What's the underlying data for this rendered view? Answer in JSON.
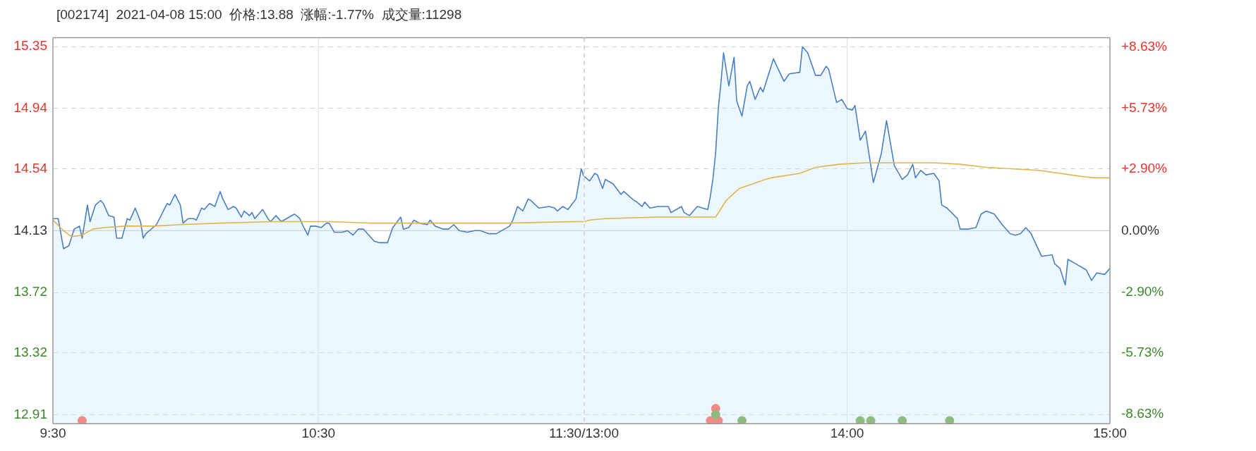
{
  "chart_data": [
    {
      "type": "line",
      "title": "[002174]  2021-04-08 15:00  价格:13.88  涨幅:-1.77%  成交量:11298",
      "xlim": [
        9.5,
        11.5
      ],
      "xticks": [
        {
          "value": 9.5,
          "label": "9:30"
        },
        {
          "value": 10.5,
          "label": "10:30"
        },
        {
          "value": 11.5,
          "label": "11:30/13:00"
        }
      ],
      "ylim": [
        12.85,
        15.41
      ],
      "yticks": [
        12.91,
        13.32,
        13.72,
        14.13,
        14.54,
        14.94,
        15.35
      ],
      "grid": "y",
      "legend": false,
      "ref_lines": [
        {
          "axis": "y",
          "value": 14.13,
          "color": "#c8cdd3",
          "line_style": "solid"
        },
        {
          "axis": "x",
          "value": 10.5,
          "color": "#dde3ea",
          "line_style": "solid"
        }
      ],
      "series": [
        {
          "type": "area",
          "color": "#4a7fc1",
          "x": [
            9.5,
            9.52,
            9.54,
            9.56,
            9.58,
            9.6,
            9.61,
            9.63,
            9.64,
            9.66,
            9.68,
            9.69,
            9.71,
            9.73,
            9.74,
            9.76,
            9.78,
            9.79,
            9.81,
            9.83,
            9.84,
            9.85,
            9.89,
            9.93,
            9.94,
            9.96,
            9.98,
            9.99,
            10.01,
            10.03,
            10.04,
            10.06,
            10.07,
            10.09,
            10.11,
            10.13,
            10.14,
            10.16,
            10.18,
            10.19,
            10.21,
            10.22,
            10.24,
            10.25,
            10.26,
            10.29,
            10.31,
            10.32,
            10.34,
            10.36,
            10.39,
            10.41,
            10.43,
            10.44,
            10.46,
            10.47,
            10.49,
            10.51,
            10.53,
            10.54,
            10.56,
            10.57,
            10.59,
            10.61,
            10.63,
            10.65,
            10.67,
            10.71,
            10.73,
            10.76,
            10.78,
            10.81,
            10.82,
            10.84,
            10.86,
            10.88,
            10.91,
            10.92,
            10.94,
            10.97,
            10.99,
            11.01,
            11.03,
            11.06,
            11.09,
            11.11,
            11.14,
            11.17,
            11.2,
            11.22,
            11.23,
            11.25,
            11.27,
            11.29,
            11.3,
            11.33,
            11.37,
            11.39,
            11.4,
            11.42,
            11.44,
            11.47,
            11.49,
            11.5
          ],
          "values": [
            14.21,
            14.21,
            14.01,
            14.03,
            14.14,
            14.16,
            14.08,
            14.3,
            14.19,
            14.3,
            14.33,
            14.31,
            14.23,
            14.22,
            14.08,
            14.08,
            14.21,
            14.2,
            14.28,
            14.19,
            14.08,
            14.11,
            14.17,
            14.31,
            14.3,
            14.37,
            14.3,
            14.18,
            14.21,
            14.21,
            14.2,
            14.28,
            14.27,
            14.31,
            14.29,
            14.39,
            14.34,
            14.27,
            14.29,
            14.28,
            14.22,
            14.26,
            14.23,
            14.25,
            14.21,
            14.27,
            14.21,
            14.19,
            14.23,
            14.19,
            14.22,
            14.24,
            14.21,
            14.17,
            14.1,
            14.16,
            14.16,
            14.15,
            14.18,
            14.18,
            14.12,
            14.12,
            14.12,
            14.13,
            14.1,
            14.14,
            14.14,
            14.06,
            14.05,
            14.05,
            14.15,
            14.22,
            14.14,
            14.15,
            14.2,
            14.18,
            14.17,
            14.2,
            14.16,
            14.14,
            14.14,
            14.17,
            14.13,
            14.12,
            14.13,
            14.13,
            14.11,
            14.11,
            14.14,
            14.16,
            14.19,
            14.29,
            14.26,
            14.34,
            14.33,
            14.28,
            14.29,
            14.28,
            14.26,
            14.29,
            14.27,
            14.34,
            14.54,
            14.49
          ]
        },
        {
          "color": "#dfb54e",
          "x": [
            9.5,
            9.54,
            9.57,
            9.61,
            9.65,
            9.69,
            9.77,
            9.88,
            9.98,
            10.13,
            10.33,
            10.54,
            10.7,
            10.76,
            11.21,
            11.47,
            11.5
          ],
          "values": [
            14.2,
            14.13,
            14.09,
            14.1,
            14.14,
            14.15,
            14.16,
            14.16,
            14.17,
            14.18,
            14.19,
            14.19,
            14.18,
            14.18,
            14.18,
            14.19,
            14.19
          ]
        },
        {
          "type": "scatter",
          "color": "#f08a84",
          "x": [
            9.61
          ],
          "values": [
            12.87
          ]
        }
      ]
    },
    {
      "type": "line",
      "xlim": [
        13,
        15
      ],
      "xticks": [
        {
          "value": 13,
          "label": null
        },
        {
          "value": 14,
          "label": "14:00"
        },
        {
          "value": 15,
          "label": "15:00"
        }
      ],
      "ylim": [
        12.85,
        15.41
      ],
      "yticks": [
        12.91,
        13.32,
        13.72,
        14.13,
        14.54,
        14.94,
        15.35
      ],
      "y2lim": [
        -9.06,
        9.06
      ],
      "y2ticks": [
        {
          "value": -8.63,
          "label": "-8.63%"
        },
        {
          "value": -5.73,
          "label": "-5.73%"
        },
        {
          "value": -2.9,
          "label": "-2.90%"
        },
        {
          "value": 0,
          "label": "0.00%"
        },
        {
          "value": 2.9,
          "label": "+2.90%"
        },
        {
          "value": 5.73,
          "label": "+5.73%"
        },
        {
          "value": 8.63,
          "label": "+8.63%"
        }
      ],
      "tick_labels": "x",
      "grid": "y",
      "legend": false,
      "ref_lines": [
        {
          "axis": "y",
          "value": 14.13,
          "color": "#c8cdd3",
          "line_style": "solid"
        },
        {
          "axis": "x",
          "value": 13,
          "color": "#bcbcbc",
          "line_style": "dashed"
        },
        {
          "axis": "x",
          "value": 14,
          "color": "#dde3ea",
          "line_style": "solid"
        }
      ],
      "series": [
        {
          "type": "area",
          "color": "#4a7fc1",
          "x": [
            13.0,
            13.02,
            13.04,
            13.05,
            13.07,
            13.08,
            13.11,
            13.14,
            13.15,
            13.17,
            13.19,
            13.2,
            13.22,
            13.23,
            13.25,
            13.28,
            13.3,
            13.32,
            13.33,
            13.37,
            13.38,
            13.4,
            13.43,
            13.45,
            13.47,
            13.48,
            13.49,
            13.5,
            13.51,
            13.52,
            13.53,
            13.55,
            13.57,
            13.58,
            13.6,
            13.62,
            13.63,
            13.65,
            13.67,
            13.68,
            13.72,
            13.73,
            13.76,
            13.78,
            13.82,
            13.83,
            13.85,
            13.88,
            13.9,
            13.92,
            13.93,
            13.96,
            13.98,
            14.0,
            14.02,
            14.03,
            14.05,
            14.07,
            14.1,
            14.13,
            14.15,
            14.18,
            14.21,
            14.23,
            14.25,
            14.26,
            14.28,
            14.3,
            14.33,
            14.35,
            14.36,
            14.38,
            14.42,
            14.43,
            14.46,
            14.49,
            14.51,
            14.53,
            14.56,
            14.59,
            14.62,
            14.64,
            14.66,
            14.68,
            14.7,
            14.74,
            14.78,
            14.79,
            14.81,
            14.83,
            14.84,
            14.87,
            14.91,
            14.93,
            14.95,
            14.98,
            15.0
          ],
          "values": [
            14.49,
            14.46,
            14.51,
            14.5,
            14.41,
            14.47,
            14.44,
            14.37,
            14.39,
            14.36,
            14.33,
            14.32,
            14.29,
            14.32,
            14.28,
            14.29,
            14.29,
            14.29,
            14.25,
            14.29,
            14.25,
            14.23,
            14.29,
            14.28,
            14.27,
            14.36,
            14.48,
            14.65,
            14.94,
            15.11,
            15.31,
            15.09,
            15.28,
            14.99,
            14.89,
            15.09,
            15.12,
            15.0,
            15.08,
            15.05,
            15.27,
            15.23,
            15.12,
            15.17,
            15.18,
            15.35,
            15.31,
            15.16,
            15.16,
            15.22,
            15.2,
            14.98,
            15.0,
            14.94,
            14.93,
            14.96,
            14.73,
            14.79,
            14.45,
            14.64,
            14.86,
            14.56,
            14.47,
            14.5,
            14.57,
            14.48,
            14.53,
            14.5,
            14.51,
            14.46,
            14.3,
            14.28,
            14.21,
            14.14,
            14.14,
            14.15,
            14.24,
            14.26,
            14.24,
            14.17,
            14.11,
            14.1,
            14.11,
            14.15,
            14.11,
            13.96,
            13.97,
            13.91,
            13.88,
            13.77,
            13.94,
            13.91,
            13.87,
            13.8,
            13.85,
            13.84,
            13.88
          ]
        },
        {
          "color": "#dfb54e",
          "x": [
            13.0,
            13.02,
            13.08,
            13.28,
            13.5,
            13.54,
            13.59,
            13.69,
            13.71,
            13.82,
            13.88,
            13.97,
            14.07,
            14.33,
            14.43,
            14.53,
            14.73,
            14.89,
            14.94,
            15.0
          ],
          "values": [
            14.19,
            14.2,
            14.21,
            14.22,
            14.22,
            14.33,
            14.41,
            14.47,
            14.48,
            14.51,
            14.55,
            14.57,
            14.58,
            14.58,
            14.57,
            14.55,
            14.53,
            14.49,
            14.48,
            14.48
          ]
        },
        {
          "type": "scatter",
          "color": "#f08a84",
          "x": [
            13.48,
            13.51,
            13.5
          ],
          "values": [
            12.87,
            12.87,
            12.95
          ]
        },
        {
          "type": "scatter",
          "color": "#8fba80",
          "x": [
            13.5,
            13.6,
            14.05,
            14.09,
            14.21,
            14.39
          ],
          "values": [
            12.91,
            12.87,
            12.87,
            12.87,
            12.87,
            12.87
          ]
        }
      ]
    }
  ]
}
